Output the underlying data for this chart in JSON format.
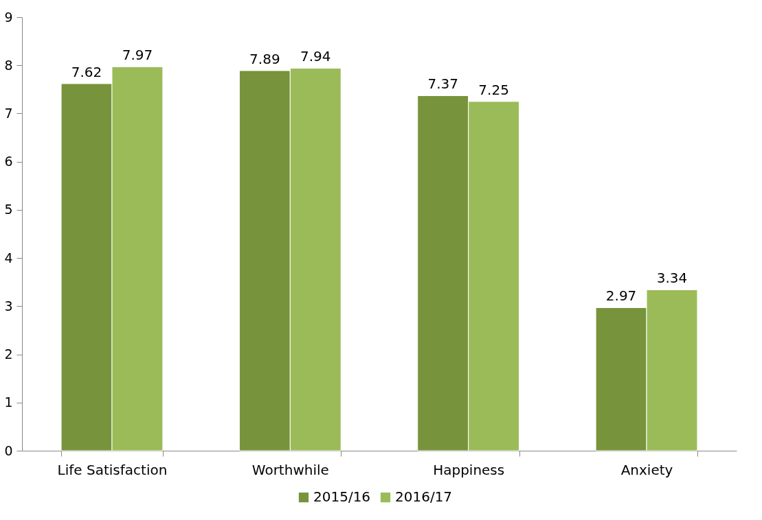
{
  "chart_data": {
    "type": "bar",
    "categories": [
      "Life Satisfaction",
      "Worthwhile",
      "Happiness",
      "Anxiety"
    ],
    "series": [
      {
        "name": "2015/16",
        "color": "#77933c",
        "values": [
          7.62,
          7.89,
          7.37,
          2.97
        ]
      },
      {
        "name": "2016/17",
        "color": "#9bbb59",
        "values": [
          7.97,
          7.94,
          7.25,
          3.34
        ]
      }
    ],
    "ylim": [
      0,
      9
    ],
    "yticks": [
      0,
      1,
      2,
      3,
      4,
      5,
      6,
      7,
      8,
      9
    ],
    "grid": false,
    "legend": "bottom",
    "data_labels": true
  }
}
